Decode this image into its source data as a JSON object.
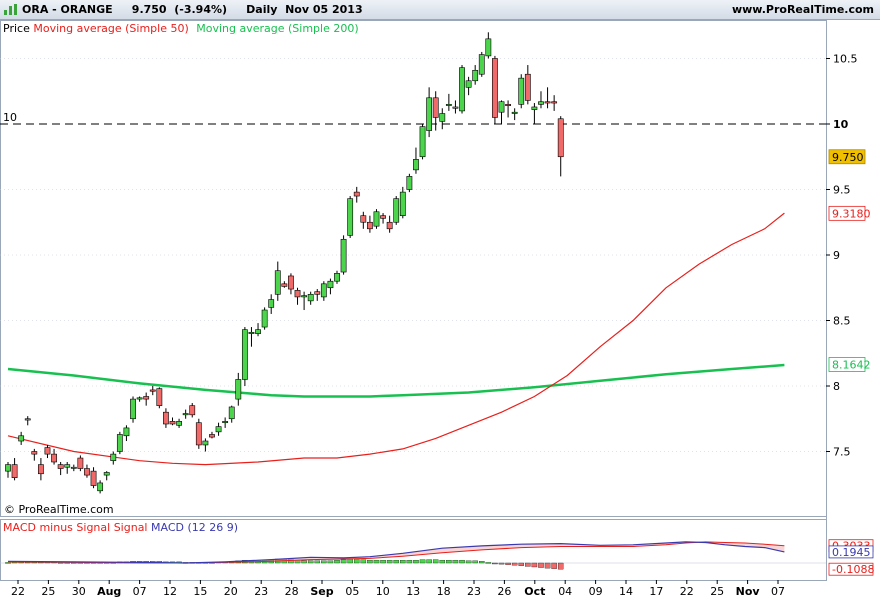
{
  "header": {
    "title": "ORA - ORANGE     9.750  (-3.94%)     Daily  Nov 05 2013",
    "site": "www.ProRealTime.com"
  },
  "legend": {
    "price": "Price",
    "ma50": "Moving average (Simple 50)",
    "ma200": "Moving average (Simple 200)"
  },
  "macd_legend": {
    "hist": "MACD minus Signal Signal",
    "macd": "MACD (12 26 9)"
  },
  "copyright": "© ProRealTime.com",
  "colors": {
    "up": "#4cd44c",
    "down": "#f06a6a",
    "ma50": "#e8201c",
    "ma200": "#18c050",
    "macd": "#3a3ab0",
    "signal": "#e8201c",
    "grid": "#bfc6d6",
    "last_price_bg": "#f0c000"
  },
  "chart_data": [
    {
      "type": "candlestick",
      "title": "ORA - ORANGE",
      "x_ticks": [
        "22",
        "25",
        "30",
        "Aug",
        "07",
        "12",
        "15",
        "20",
        "23",
        "28",
        "Sep",
        "05",
        "10",
        "13",
        "18",
        "23",
        "26",
        "Oct",
        "04",
        "09",
        "14",
        "17",
        "22",
        "25",
        "Nov",
        "07"
      ],
      "y_ticks": [
        "7.5",
        "8",
        "8.5",
        "9",
        "9.5",
        "10",
        "10.5"
      ],
      "ylim": [
        7.08,
        10.85
      ],
      "reference_line": {
        "label": "10",
        "value": 10.0
      },
      "last_price_label": "9.750",
      "ma50_label": "9.3180",
      "ma200_label": "8.1642",
      "ohlc": [
        [
          7.35,
          7.42,
          7.3,
          7.4
        ],
        [
          7.4,
          7.45,
          7.28,
          7.3
        ],
        [
          7.58,
          7.65,
          7.55,
          7.62
        ],
        [
          7.75,
          7.77,
          7.7,
          7.74
        ],
        [
          7.5,
          7.52,
          7.43,
          7.48
        ],
        [
          7.4,
          7.45,
          7.28,
          7.33
        ],
        [
          7.53,
          7.55,
          7.45,
          7.48
        ],
        [
          7.48,
          7.52,
          7.4,
          7.42
        ],
        [
          7.4,
          7.42,
          7.32,
          7.37
        ],
        [
          7.38,
          7.42,
          7.33,
          7.4
        ],
        [
          7.38,
          7.4,
          7.35,
          7.38
        ],
        [
          7.45,
          7.47,
          7.35,
          7.37
        ],
        [
          7.37,
          7.4,
          7.3,
          7.32
        ],
        [
          7.35,
          7.38,
          7.22,
          7.24
        ],
        [
          7.2,
          7.28,
          7.18,
          7.26
        ],
        [
          7.32,
          7.35,
          7.28,
          7.34
        ],
        [
          7.43,
          7.5,
          7.4,
          7.48
        ],
        [
          7.5,
          7.65,
          7.48,
          7.63
        ],
        [
          7.62,
          7.7,
          7.58,
          7.68
        ],
        [
          7.75,
          7.92,
          7.72,
          7.9
        ],
        [
          7.9,
          7.92,
          7.88,
          7.91
        ],
        [
          7.92,
          7.95,
          7.85,
          7.9
        ],
        [
          7.97,
          8.0,
          7.93,
          7.96
        ],
        [
          7.98,
          7.99,
          7.83,
          7.85
        ],
        [
          7.8,
          7.83,
          7.68,
          7.71
        ],
        [
          7.73,
          7.76,
          7.7,
          7.71
        ],
        [
          7.7,
          7.75,
          7.68,
          7.73
        ],
        [
          7.78,
          7.82,
          7.75,
          7.79
        ],
        [
          7.85,
          7.87,
          7.76,
          7.78
        ],
        [
          7.72,
          7.75,
          7.52,
          7.55
        ],
        [
          7.55,
          7.6,
          7.5,
          7.58
        ],
        [
          7.63,
          7.65,
          7.6,
          7.61
        ],
        [
          7.65,
          7.72,
          7.62,
          7.69
        ],
        [
          7.72,
          7.76,
          7.68,
          7.73
        ],
        [
          7.75,
          7.85,
          7.72,
          7.84
        ],
        [
          7.9,
          8.1,
          7.85,
          8.05
        ],
        [
          8.05,
          8.45,
          8.0,
          8.43
        ],
        [
          8.4,
          8.45,
          8.3,
          8.41
        ],
        [
          8.4,
          8.48,
          8.38,
          8.43
        ],
        [
          8.45,
          8.6,
          8.43,
          8.58
        ],
        [
          8.6,
          8.7,
          8.55,
          8.66
        ],
        [
          8.7,
          8.95,
          8.65,
          8.88
        ],
        [
          8.78,
          8.8,
          8.75,
          8.76
        ],
        [
          8.84,
          8.86,
          8.7,
          8.74
        ],
        [
          8.73,
          8.75,
          8.62,
          8.68
        ],
        [
          8.68,
          8.72,
          8.58,
          8.69
        ],
        [
          8.65,
          8.72,
          8.62,
          8.7
        ],
        [
          8.72,
          8.74,
          8.65,
          8.7
        ],
        [
          8.68,
          8.8,
          8.65,
          8.78
        ],
        [
          8.75,
          8.82,
          8.7,
          8.8
        ],
        [
          8.8,
          8.88,
          8.78,
          8.86
        ],
        [
          8.87,
          9.15,
          8.85,
          9.12
        ],
        [
          9.15,
          9.45,
          9.13,
          9.43
        ],
        [
          9.48,
          9.52,
          9.4,
          9.45
        ],
        [
          9.3,
          9.33,
          9.2,
          9.25
        ],
        [
          9.25,
          9.3,
          9.17,
          9.2
        ],
        [
          9.22,
          9.35,
          9.2,
          9.33
        ],
        [
          9.3,
          9.32,
          9.24,
          9.28
        ],
        [
          9.25,
          9.3,
          9.17,
          9.2
        ],
        [
          9.25,
          9.45,
          9.23,
          9.43
        ],
        [
          9.3,
          9.52,
          9.28,
          9.48
        ],
        [
          9.5,
          9.62,
          9.48,
          9.6
        ],
        [
          9.65,
          9.82,
          9.62,
          9.73
        ],
        [
          9.75,
          10.0,
          9.73,
          9.98
        ],
        [
          9.95,
          10.28,
          9.9,
          10.2
        ],
        [
          10.2,
          10.25,
          9.95,
          10.05
        ],
        [
          10.02,
          10.12,
          9.96,
          10.08
        ],
        [
          10.15,
          10.23,
          10.1,
          10.15
        ],
        [
          10.12,
          10.18,
          10.08,
          10.13
        ],
        [
          10.1,
          10.45,
          10.08,
          10.43
        ],
        [
          10.28,
          10.36,
          10.22,
          10.33
        ],
        [
          10.33,
          10.45,
          10.3,
          10.41
        ],
        [
          10.38,
          10.55,
          10.36,
          10.53
        ],
        [
          10.52,
          10.7,
          10.5,
          10.65
        ],
        [
          10.5,
          10.52,
          10.0,
          10.05
        ],
        [
          10.09,
          10.18,
          10.0,
          10.17
        ],
        [
          10.15,
          10.18,
          10.05,
          10.14
        ],
        [
          10.08,
          10.12,
          10.03,
          10.09
        ],
        [
          10.15,
          10.38,
          10.12,
          10.35
        ],
        [
          10.38,
          10.45,
          10.15,
          10.18
        ],
        [
          10.11,
          10.16,
          10.0,
          10.13
        ],
        [
          10.15,
          10.25,
          10.12,
          10.17
        ],
        [
          10.17,
          10.28,
          10.12,
          10.16
        ],
        [
          10.17,
          10.22,
          10.1,
          10.16
        ],
        [
          10.04,
          10.06,
          9.6,
          9.75
        ]
      ],
      "ma50": [
        [
          0,
          7.62
        ],
        [
          10,
          7.5
        ],
        [
          20,
          7.43
        ],
        [
          25,
          7.41
        ],
        [
          30,
          7.4
        ],
        [
          38,
          7.42
        ],
        [
          45,
          7.45
        ],
        [
          50,
          7.45
        ],
        [
          55,
          7.48
        ],
        [
          60,
          7.52
        ],
        [
          65,
          7.6
        ],
        [
          70,
          7.7
        ],
        [
          75,
          7.8
        ],
        [
          80,
          7.92
        ],
        [
          85,
          8.08
        ],
        [
          90,
          8.3
        ],
        [
          95,
          8.5
        ],
        [
          100,
          8.75
        ],
        [
          105,
          8.93
        ],
        [
          110,
          9.08
        ],
        [
          115,
          9.2
        ],
        [
          118,
          9.32
        ]
      ],
      "ma200": [
        [
          0,
          8.13
        ],
        [
          10,
          8.08
        ],
        [
          20,
          8.02
        ],
        [
          30,
          7.97
        ],
        [
          40,
          7.93
        ],
        [
          45,
          7.92
        ],
        [
          50,
          7.92
        ],
        [
          55,
          7.92
        ],
        [
          60,
          7.93
        ],
        [
          70,
          7.95
        ],
        [
          80,
          7.99
        ],
        [
          90,
          8.04
        ],
        [
          100,
          8.09
        ],
        [
          110,
          8.13
        ],
        [
          118,
          8.16
        ]
      ]
    },
    {
      "type": "bar+line",
      "title": "MACD (12 26 9)",
      "y_labels": [
        "0.3033",
        "0.1945",
        "-0.1088"
      ],
      "ylim": [
        -0.15,
        0.42
      ],
      "macd": [
        [
          0,
          0.03
        ],
        [
          10,
          0.02
        ],
        [
          20,
          0.01
        ],
        [
          27,
          0.0
        ],
        [
          33,
          0.02
        ],
        [
          40,
          0.06
        ],
        [
          46,
          0.1
        ],
        [
          51,
          0.09
        ],
        [
          55,
          0.11
        ],
        [
          60,
          0.17
        ],
        [
          66,
          0.26
        ],
        [
          72,
          0.3
        ],
        [
          78,
          0.33
        ],
        [
          84,
          0.34
        ],
        [
          90,
          0.31
        ],
        [
          95,
          0.32
        ],
        [
          100,
          0.35
        ],
        [
          103,
          0.37
        ],
        [
          106,
          0.36
        ],
        [
          109,
          0.32
        ],
        [
          112,
          0.29
        ],
        [
          115,
          0.27
        ],
        [
          118,
          0.195
        ]
      ],
      "signal": [
        [
          0,
          0.02
        ],
        [
          10,
          0.01
        ],
        [
          20,
          0.0
        ],
        [
          27,
          0.0
        ],
        [
          33,
          0.01
        ],
        [
          40,
          0.03
        ],
        [
          46,
          0.06
        ],
        [
          51,
          0.07
        ],
        [
          55,
          0.08
        ],
        [
          60,
          0.12
        ],
        [
          66,
          0.18
        ],
        [
          72,
          0.23
        ],
        [
          78,
          0.27
        ],
        [
          84,
          0.29
        ],
        [
          90,
          0.29
        ],
        [
          95,
          0.29
        ],
        [
          100,
          0.32
        ],
        [
          103,
          0.35
        ],
        [
          106,
          0.37
        ],
        [
          109,
          0.36
        ],
        [
          112,
          0.35
        ],
        [
          115,
          0.33
        ],
        [
          118,
          0.303
        ]
      ],
      "histogram": [
        0.01,
        0.02,
        0.02,
        0.03,
        0.03,
        0.02,
        0.02,
        0.02,
        0.01,
        0.01,
        0.01,
        0.01,
        0.01,
        0.01,
        0.01,
        0.01,
        0.01,
        0.02,
        0.02,
        0.03,
        0.03,
        0.03,
        0.03,
        0.03,
        0.02,
        0.02,
        0.02,
        0.01,
        0.01,
        0.01,
        0.01,
        0.01,
        0.02,
        0.02,
        0.03,
        0.04,
        0.05,
        0.05,
        0.05,
        0.05,
        0.06,
        0.07,
        0.07,
        0.06,
        0.05,
        0.04,
        0.04,
        0.04,
        0.04,
        0.04,
        0.05,
        0.06,
        0.07,
        0.07,
        0.06,
        0.05,
        0.05,
        0.05,
        0.05,
        0.05,
        0.05,
        0.05,
        0.05,
        0.06,
        0.06,
        0.06,
        0.05,
        0.05,
        0.05,
        0.05,
        0.04,
        0.04,
        0.03,
        0.01,
        -0.01,
        -0.02,
        -0.03,
        -0.04,
        -0.05,
        -0.06,
        -0.07,
        -0.08,
        -0.09,
        -0.1,
        -0.11
      ]
    }
  ]
}
